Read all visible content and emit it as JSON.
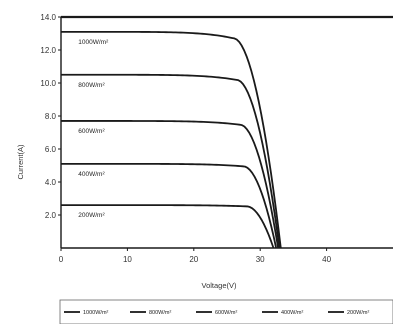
{
  "chart_data": {
    "type": "line",
    "title": "",
    "xlabel": "Voltage(V)",
    "ylabel": "Current(A)",
    "xlim": [
      0,
      50
    ],
    "ylim": [
      0,
      14
    ],
    "x_ticks": [
      "0",
      "10",
      "20",
      "30",
      "40"
    ],
    "y_ticks": [
      "2.0",
      "4.0",
      "6.0",
      "8.0",
      "10.0",
      "12.0",
      "14.0"
    ],
    "grid": false,
    "legend_position": "bottom",
    "line_color": "#1a1a1a",
    "series": [
      {
        "name": "1000W/m²",
        "legend": "1000W/m²",
        "isc": 13.1,
        "knee": 26.0,
        "voc": 33.1
      },
      {
        "name": "800W/m²",
        "legend": "800W/m²",
        "isc": 10.5,
        "knee": 26.5,
        "voc": 32.9
      },
      {
        "name": "600W/m²",
        "legend": "600W/m²",
        "isc": 7.7,
        "knee": 27.0,
        "voc": 32.7
      },
      {
        "name": "400W/m²",
        "legend": "400W/m²",
        "isc": 5.1,
        "knee": 27.5,
        "voc": 32.4
      },
      {
        "name": "200W/m²",
        "legend": "200W/m²",
        "isc": 2.6,
        "knee": 28.0,
        "voc": 32.0
      }
    ]
  }
}
